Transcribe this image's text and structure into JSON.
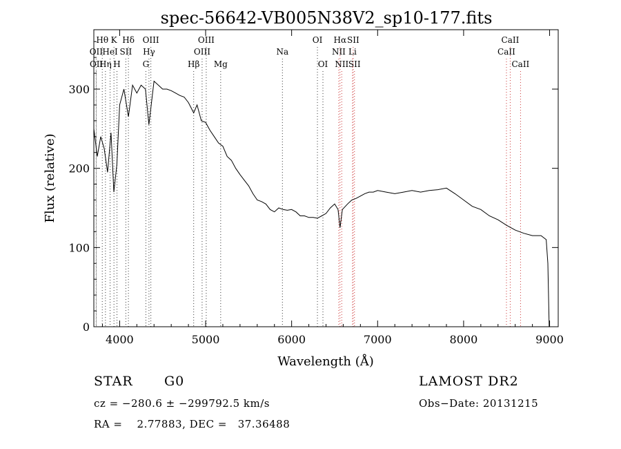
{
  "chart_data": {
    "type": "line",
    "title": "spec-56642-VB005N38V2_sp10-177.fits",
    "xlabel": "Wavelength (Å)",
    "ylabel": "Flux (relative)",
    "xlim": [
      3700,
      9100
    ],
    "ylim": [
      0,
      375
    ],
    "xticks": [
      4000,
      5000,
      6000,
      7000,
      8000,
      9000
    ],
    "yticks": [
      0,
      100,
      200,
      300
    ],
    "grid": false,
    "series": [
      {
        "x": [
          3700,
          3740,
          3780,
          3820,
          3860,
          3900,
          3933,
          3968,
          4000,
          4050,
          4102,
          4150,
          4200,
          4250,
          4300,
          4340,
          4400,
          4450,
          4500,
          4550,
          4600,
          4650,
          4700,
          4750,
          4800,
          4861,
          4900,
          4950,
          5000,
          5050,
          5100,
          5150,
          5200,
          5250,
          5300,
          5350,
          5400,
          5450,
          5500,
          5550,
          5600,
          5650,
          5700,
          5750,
          5800,
          5850,
          5900,
          5950,
          6000,
          6050,
          6100,
          6150,
          6200,
          6250,
          6300,
          6350,
          6400,
          6450,
          6500,
          6540,
          6563,
          6590,
          6650,
          6700,
          6750,
          6800,
          6850,
          6900,
          6950,
          7000,
          7100,
          7200,
          7300,
          7400,
          7500,
          7600,
          7700,
          7800,
          7900,
          8000,
          8100,
          8200,
          8300,
          8400,
          8500,
          8600,
          8700,
          8800,
          8900,
          8960,
          8980,
          8995
        ],
        "y": [
          250,
          215,
          240,
          225,
          195,
          245,
          170,
          205,
          280,
          300,
          265,
          305,
          295,
          305,
          300,
          255,
          310,
          305,
          300,
          300,
          298,
          295,
          292,
          290,
          283,
          270,
          280,
          260,
          258,
          248,
          240,
          232,
          228,
          215,
          210,
          200,
          192,
          185,
          178,
          168,
          160,
          158,
          155,
          148,
          145,
          150,
          148,
          147,
          148,
          145,
          140,
          140,
          138,
          138,
          137,
          140,
          143,
          150,
          155,
          148,
          125,
          148,
          155,
          160,
          162,
          165,
          168,
          170,
          170,
          172,
          170,
          168,
          170,
          172,
          170,
          172,
          173,
          175,
          168,
          160,
          152,
          148,
          140,
          135,
          128,
          122,
          118,
          115,
          115,
          110,
          80,
          0
        ]
      }
    ],
    "line_markers": [
      {
        "label": "Hθ",
        "x": 3798,
        "row": 1
      },
      {
        "label": "OII",
        "x": 3727,
        "row": 2
      },
      {
        "label": "OII",
        "x": 3729,
        "row": 3
      },
      {
        "label": "Hη",
        "x": 3835,
        "row": 3
      },
      {
        "label": "K",
        "x": 3934,
        "row": 1
      },
      {
        "label": "HeI",
        "x": 3889,
        "row": 2
      },
      {
        "label": "SII",
        "x": 4072,
        "row": 2
      },
      {
        "label": "H",
        "x": 3969,
        "row": 3
      },
      {
        "label": "Hδ",
        "x": 4102,
        "row": 1
      },
      {
        "label": "OIII",
        "x": 4363,
        "row": 1
      },
      {
        "label": "Hγ",
        "x": 4341,
        "row": 2
      },
      {
        "label": "G",
        "x": 4305,
        "row": 3
      },
      {
        "label": "Hβ",
        "x": 4861,
        "row": 3
      },
      {
        "label": "OIII",
        "x": 5007,
        "row": 1
      },
      {
        "label": "OIII",
        "x": 4959,
        "row": 2
      },
      {
        "label": "Mg",
        "x": 5175,
        "row": 3
      },
      {
        "label": "Na",
        "x": 5893,
        "row": 2
      },
      {
        "label": "OI",
        "x": 6300,
        "row": 1
      },
      {
        "label": "OI",
        "x": 6364,
        "row": 3
      },
      {
        "label": "Hα",
        "x": 6563,
        "row": 1
      },
      {
        "label": "SII",
        "x": 6716,
        "row": 1
      },
      {
        "label": "NII",
        "x": 6548,
        "row": 2
      },
      {
        "label": "Li",
        "x": 6708,
        "row": 2
      },
      {
        "label": "NII",
        "x": 6583,
        "row": 3
      },
      {
        "label": "SII",
        "x": 6731,
        "row": 3
      },
      {
        "label": "CaII",
        "x": 8542,
        "row": 1
      },
      {
        "label": "CaII",
        "x": 8498,
        "row": 2
      },
      {
        "label": "CaII",
        "x": 8662,
        "row": 3
      }
    ],
    "marker_color_blue": "#333333",
    "marker_color_red": "#cc3333"
  },
  "info": {
    "object_class": "STAR",
    "subclass": "G0",
    "survey": "LAMOST DR2",
    "cz": "cz = −280.6 ± −299792.5 km/s",
    "obs_date": "Obs−Date: 20131215",
    "radec": "RA =    2.77883, DEC =   37.36488"
  }
}
